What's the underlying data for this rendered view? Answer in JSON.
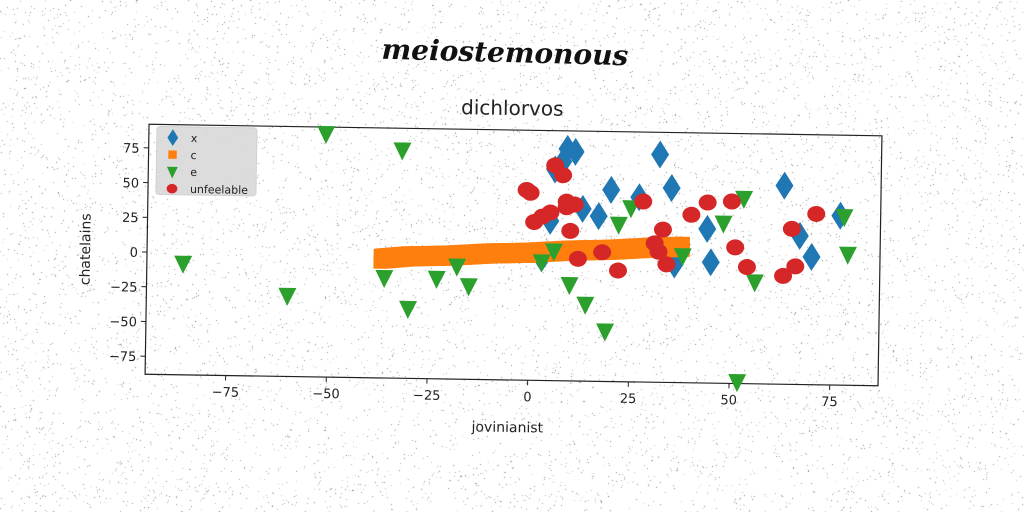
{
  "suptitle": "meiostemonous",
  "chart_data": {
    "type": "scatter",
    "title": "dichlorvos",
    "xlabel": "jovinianist",
    "ylabel": "chatelains",
    "xlim": [
      -95,
      87
    ],
    "ylim": [
      -88,
      92
    ],
    "xticks": [
      -75,
      -50,
      -25,
      0,
      25,
      50,
      75
    ],
    "yticks": [
      -75,
      -50,
      -25,
      0,
      25,
      50,
      75
    ],
    "xtick_labels": [
      "−75",
      "−50",
      "−25",
      "0",
      "25",
      "50",
      "75"
    ],
    "ytick_labels": [
      "−75",
      "−50",
      "−25",
      "0",
      "25",
      "50",
      "75"
    ],
    "grid": false,
    "legend_position": "top-left",
    "series": [
      {
        "name": "x",
        "marker": "diamond",
        "color": "#1f77b4",
        "x": [
          5,
          6,
          8,
          9,
          11,
          13,
          17,
          20,
          27,
          32,
          35,
          44,
          45,
          63,
          67,
          70,
          77,
          3,
          36
        ],
        "y": [
          27,
          64,
          70,
          79,
          77,
          36,
          31,
          50,
          45,
          76,
          52,
          23,
          -1,
          55,
          19,
          4,
          34,
          0,
          -3
        ]
      },
      {
        "name": "c",
        "marker": "square",
        "color": "#ff7f0e",
        "x": [
          -37,
          -30,
          -20,
          -10,
          0,
          10,
          20,
          30,
          38
        ],
        "y": [
          0,
          2,
          3,
          5,
          6,
          8,
          9,
          11,
          12
        ]
      },
      {
        "name": "e",
        "marker": "triangle-down",
        "color": "#2ca02c",
        "x": [
          -51,
          -32,
          -86,
          -60,
          -36,
          -30,
          -23,
          -18,
          -15,
          3,
          6,
          10,
          14,
          19,
          22,
          25,
          38,
          48,
          53,
          56,
          78,
          79,
          52
        ],
        "y": [
          87,
          76,
          -8,
          -30,
          -16,
          -38,
          -16,
          -7,
          -21,
          -3,
          5,
          -19,
          -33,
          -52,
          25,
          37,
          3,
          27,
          45,
          -15,
          33,
          6,
          -87
        ]
      },
      {
        "name": "unfeelable",
        "marker": "circle",
        "color": "#d62728",
        "x": [
          -1,
          0,
          1,
          3,
          5,
          6,
          8,
          9,
          9,
          10,
          11,
          12,
          18,
          22,
          28,
          31,
          32,
          33,
          34,
          40,
          44,
          50,
          51,
          54,
          63,
          65,
          66,
          71
        ],
        "y": [
          49,
          47,
          26,
          30,
          33,
          67,
          60,
          41,
          37,
          20,
          39,
          0,
          5,
          -8,
          42,
          12,
          6,
          22,
          -3,
          33,
          42,
          43,
          10,
          -4,
          -10,
          24,
          -3,
          35
        ]
      }
    ]
  }
}
